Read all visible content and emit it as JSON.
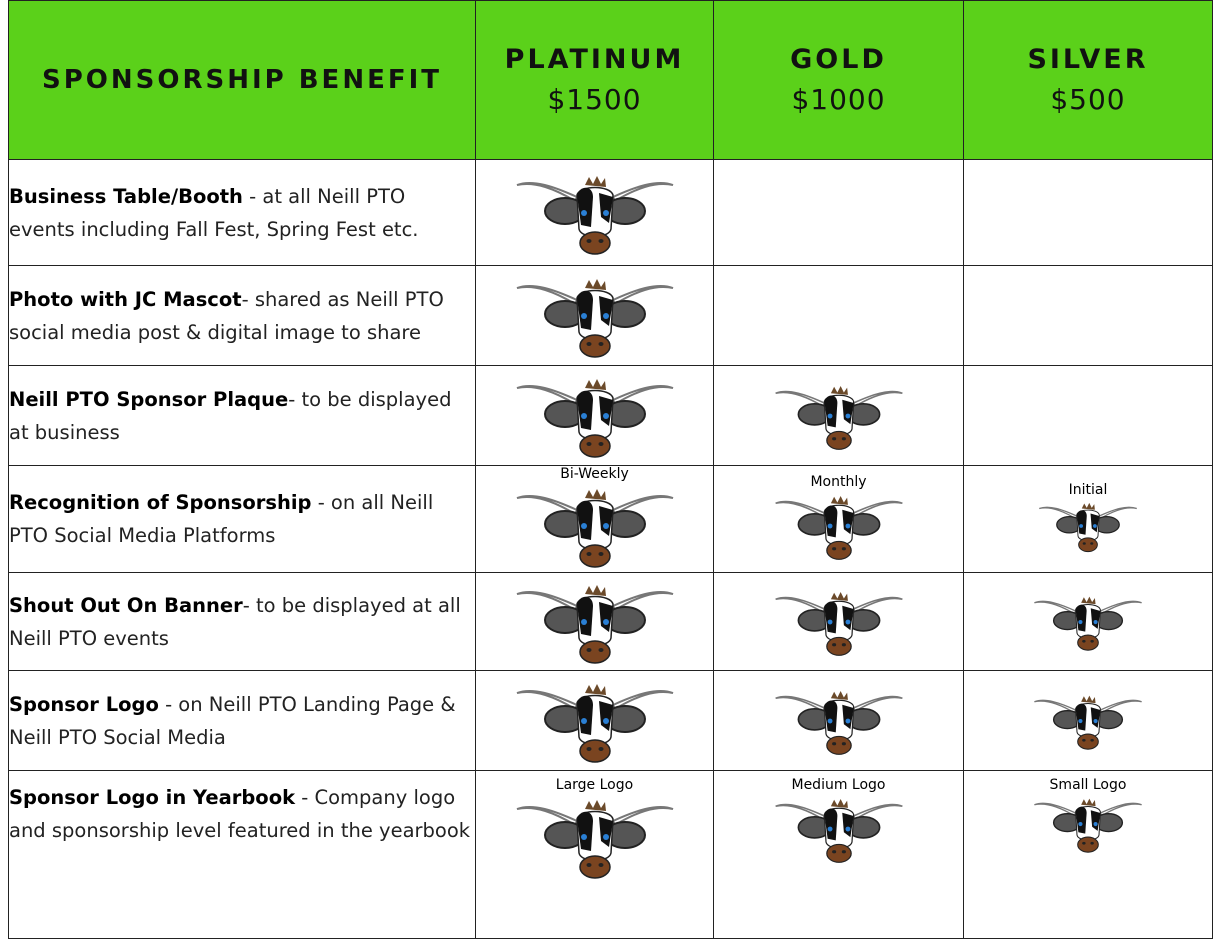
{
  "table": {
    "header": {
      "benefit": "SPONSORSHIP BENEFIT",
      "tiers": [
        {
          "name": "PLATINUM",
          "price": "$1500"
        },
        {
          "name": "GOLD",
          "price": "$1000"
        },
        {
          "name": "SILVER",
          "price": "$500"
        }
      ]
    },
    "rows": [
      {
        "title": "Business Table/Booth",
        "text": " - at all Neill PTO events including Fall Fest, Spring Fest etc."
      },
      {
        "title": "Photo with JC Mascot",
        "text": "- shared as Neill PTO social media post & digital image to share"
      },
      {
        "title": "Neill PTO Sponsor Plaque",
        "text": "- to be displayed at business"
      },
      {
        "title": "Recognition of Sponsorship",
        "text": " - on all Neill PTO Social Media Platforms",
        "notes": [
          "Bi-Weekly",
          "Monthly",
          "Initial"
        ]
      },
      {
        "title": "Shout Out On Banner",
        "text": "- to be displayed at all Neill PTO events"
      },
      {
        "title": "Sponsor Logo",
        "text": " - on Neill PTO Landing Page & Neill PTO Social Media"
      },
      {
        "title": "Sponsor Logo in Yearbook",
        "text": " - Company logo and sponsorship level featured in the yearbook",
        "notes": [
          "Large Logo",
          "Medium Logo",
          "Small Logo"
        ]
      }
    ]
  }
}
